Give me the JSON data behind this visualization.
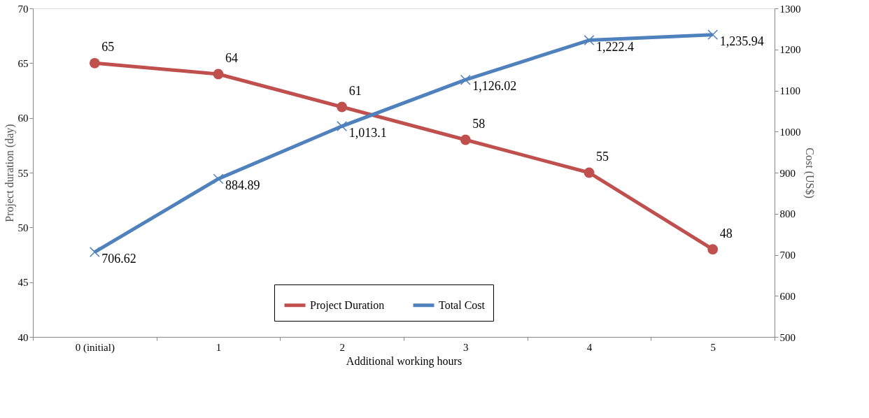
{
  "chart_data": {
    "type": "line",
    "xlabel": "Additional working hours",
    "ylabel": "Project duration (day)",
    "y2label": "Cost (US$)",
    "categories": [
      "0 (initial)",
      "1",
      "2",
      "3",
      "4",
      "5"
    ],
    "ylim": [
      40,
      70
    ],
    "yticks": [
      40,
      45,
      50,
      55,
      60,
      65,
      70
    ],
    "y2lim": [
      500,
      1300
    ],
    "y2ticks": [
      500,
      600,
      700,
      800,
      900,
      1000,
      1100,
      1200,
      1300
    ],
    "series": [
      {
        "name": "Project Duration",
        "color": "#c0504d",
        "marker": "circle",
        "values": [
          65,
          64,
          61,
          58,
          55,
          48
        ],
        "value_labels": [
          "65",
          "64",
          "61",
          "58",
          "55",
          "48"
        ]
      },
      {
        "name": "Total Cost",
        "color": "#4f81bd",
        "marker": "cross",
        "axis": "y2",
        "values": [
          706.62,
          884.89,
          1013.1,
          1126.02,
          1222.4,
          1235.94
        ],
        "value_labels": [
          "706.62",
          "884.89",
          "1,013.1",
          "1,126.02",
          "1,222.4",
          "1,235.94"
        ]
      }
    ],
    "grid": false,
    "legend": "bottom"
  }
}
